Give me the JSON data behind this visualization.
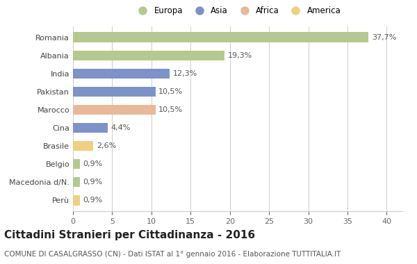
{
  "categories": [
    "Romania",
    "Albania",
    "India",
    "Pakistan",
    "Marocco",
    "Cina",
    "Brasile",
    "Belgio",
    "Macedonia d/N.",
    "Perù"
  ],
  "values": [
    37.7,
    19.3,
    12.3,
    10.5,
    10.5,
    4.4,
    2.6,
    0.9,
    0.9,
    0.9
  ],
  "labels": [
    "37,7%",
    "19,3%",
    "12,3%",
    "10,5%",
    "10,5%",
    "4,4%",
    "2,6%",
    "0,9%",
    "0,9%",
    "0,9%"
  ],
  "colors": [
    "#b5c98e",
    "#b5c98e",
    "#7b93c8",
    "#7b93c8",
    "#e8b898",
    "#7b93c8",
    "#f0d080",
    "#b5c98e",
    "#b5c98e",
    "#f0d080"
  ],
  "legend_labels": [
    "Europa",
    "Asia",
    "Africa",
    "America"
  ],
  "legend_colors": [
    "#b5c98e",
    "#7b93c8",
    "#e8b898",
    "#f0d080"
  ],
  "title": "Cittadini Stranieri per Cittadinanza - 2016",
  "subtitle": "COMUNE DI CASALGRASSO (CN) - Dati ISTAT al 1° gennaio 2016 - Elaborazione TUTTITALIA.IT",
  "xlim": [
    0,
    42
  ],
  "xticks": [
    0,
    5,
    10,
    15,
    20,
    25,
    30,
    35,
    40
  ],
  "bg_color": "#ffffff",
  "grid_color": "#cccccc",
  "bar_height": 0.55,
  "title_fontsize": 11,
  "subtitle_fontsize": 7.5,
  "label_fontsize": 8,
  "tick_fontsize": 8,
  "legend_fontsize": 8.5
}
